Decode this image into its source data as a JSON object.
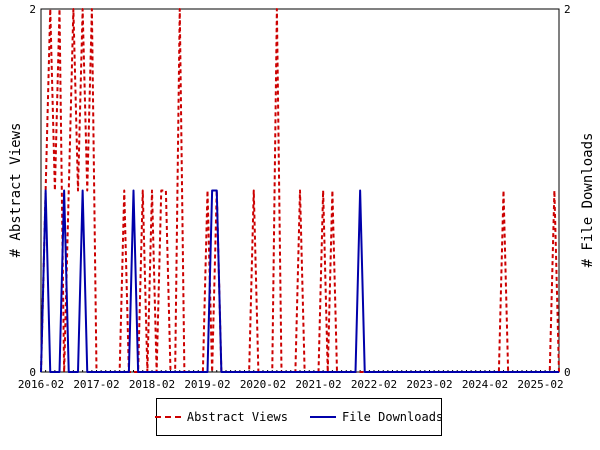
{
  "chart_data": {
    "type": "line",
    "x": [
      "2016-02",
      "2016-03",
      "2016-04",
      "2016-05",
      "2016-06",
      "2016-07",
      "2016-08",
      "2016-09",
      "2016-10",
      "2016-11",
      "2016-12",
      "2017-01",
      "2017-02",
      "2017-03",
      "2017-04",
      "2017-05",
      "2017-06",
      "2017-07",
      "2017-08",
      "2017-09",
      "2017-10",
      "2017-11",
      "2017-12",
      "2018-01",
      "2018-02",
      "2018-03",
      "2018-04",
      "2018-05",
      "2018-06",
      "2018-07",
      "2018-08",
      "2018-09",
      "2018-10",
      "2018-11",
      "2018-12",
      "2019-01",
      "2019-02",
      "2019-03",
      "2019-04",
      "2019-05",
      "2019-06",
      "2019-07",
      "2019-08",
      "2019-09",
      "2019-10",
      "2019-11",
      "2019-12",
      "2020-01",
      "2020-02",
      "2020-03",
      "2020-04",
      "2020-05",
      "2020-06",
      "2020-07",
      "2020-08",
      "2020-09",
      "2020-10",
      "2020-11",
      "2020-12",
      "2021-01",
      "2021-02",
      "2021-03",
      "2021-04",
      "2021-05",
      "2021-06",
      "2021-07",
      "2021-08",
      "2021-09",
      "2021-10",
      "2021-11",
      "2021-12",
      "2022-01",
      "2022-02",
      "2022-03",
      "2022-04",
      "2022-05",
      "2022-06",
      "2022-07",
      "2022-08",
      "2022-09",
      "2022-10",
      "2022-11",
      "2022-12",
      "2023-01",
      "2023-02",
      "2023-03",
      "2023-04",
      "2023-05",
      "2023-06",
      "2023-07",
      "2023-08",
      "2023-09",
      "2023-10",
      "2023-11",
      "2023-12",
      "2024-01",
      "2024-02",
      "2024-03",
      "2024-04",
      "2024-05",
      "2024-06",
      "2024-07",
      "2024-08",
      "2024-09",
      "2024-10",
      "2024-11",
      "2024-12",
      "2025-01",
      "2025-02",
      "2025-03",
      "2025-04",
      "2025-05",
      "2025-06"
    ],
    "series": [
      {
        "name": "Abstract Views",
        "color": "#cc0000",
        "dash": true,
        "values": [
          0,
          1,
          2,
          1,
          2,
          0,
          1,
          2,
          1,
          2,
          1,
          2,
          0,
          0,
          0,
          0,
          0,
          0,
          1,
          0,
          0,
          0,
          1,
          0,
          1,
          0,
          1,
          1,
          0,
          0,
          2,
          0,
          0,
          0,
          0,
          0,
          1,
          0,
          1,
          0,
          0,
          0,
          0,
          0,
          0,
          0,
          1,
          0,
          0,
          0,
          0,
          2,
          0,
          0,
          0,
          0,
          1,
          0,
          0,
          0,
          0,
          1,
          0,
          1,
          0,
          0,
          0,
          0,
          0,
          0,
          0,
          0,
          0,
          0,
          0,
          0,
          0,
          0,
          0,
          0,
          0,
          0,
          0,
          0,
          0,
          0,
          0,
          0,
          0,
          0,
          0,
          0,
          0,
          0,
          0,
          0,
          0,
          0,
          0,
          0,
          1,
          0,
          0,
          0,
          0,
          0,
          0,
          0,
          0,
          0,
          0,
          1,
          0
        ]
      },
      {
        "name": "File Downloads",
        "color": "#0000aa",
        "dash": false,
        "values": [
          0,
          1,
          0,
          0,
          0,
          1,
          0,
          0,
          0,
          1,
          0,
          0,
          0,
          0,
          0,
          0,
          0,
          0,
          0,
          0,
          1,
          0,
          0,
          0,
          0,
          0,
          0,
          0,
          0,
          0,
          0,
          0,
          0,
          0,
          0,
          0,
          0,
          1,
          1,
          0,
          0,
          0,
          0,
          0,
          0,
          0,
          0,
          0,
          0,
          0,
          0,
          0,
          0,
          0,
          0,
          0,
          0,
          0,
          0,
          0,
          0,
          0,
          0,
          0,
          0,
          0,
          0,
          0,
          0,
          1,
          0,
          0,
          0,
          0,
          0,
          0,
          0,
          0,
          0,
          0,
          0,
          0,
          0,
          0,
          0,
          0,
          0,
          0,
          0,
          0,
          0,
          0,
          0,
          0,
          0,
          0,
          0,
          0,
          0,
          0,
          0,
          0,
          0,
          0,
          0,
          0,
          0,
          0,
          0,
          0,
          0,
          0,
          0
        ]
      }
    ],
    "xtick_labels": [
      "2016-02",
      "2017-02",
      "2018-02",
      "2019-02",
      "2020-02",
      "2021-02",
      "2022-02",
      "2023-02",
      "2024-02",
      "2025-02"
    ],
    "ylabel_left": "# Abstract Views",
    "ylabel_right": "# File Downloads",
    "ylim_left": [
      0,
      2
    ],
    "ylim_right": [
      0,
      2
    ],
    "yticks_left": [
      "0",
      "2"
    ],
    "yticks_right": [
      "0",
      "2"
    ],
    "legend": {
      "placement": "bottom"
    }
  }
}
